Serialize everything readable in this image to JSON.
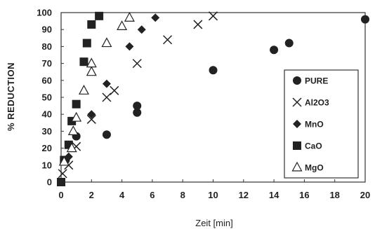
{
  "chart_data": {
    "type": "scatter",
    "xlabel": "Zeit [min]",
    "ylabel": "% REDUCTION",
    "xlim": [
      0,
      20
    ],
    "ylim": [
      0,
      100
    ],
    "x_ticks": [
      0,
      2,
      4,
      6,
      8,
      10,
      12,
      14,
      16,
      18,
      20
    ],
    "y_ticks": [
      0,
      10,
      20,
      30,
      40,
      50,
      60,
      70,
      80,
      90,
      100
    ],
    "grid": false,
    "legend_position": "right",
    "series": [
      {
        "name": "PURE",
        "marker": "circle",
        "points": [
          [
            0,
            0
          ],
          [
            0.3,
            13
          ],
          [
            1,
            27
          ],
          [
            3,
            28
          ],
          [
            5,
            45
          ],
          [
            5,
            41
          ],
          [
            10,
            66
          ],
          [
            14,
            78
          ],
          [
            15,
            82
          ],
          [
            20,
            96
          ]
        ]
      },
      {
        "name": "Al2O3",
        "marker": "x",
        "points": [
          [
            0.1,
            5
          ],
          [
            0.5,
            10
          ],
          [
            1,
            21
          ],
          [
            2,
            37
          ],
          [
            3,
            50
          ],
          [
            3.5,
            54
          ],
          [
            5,
            70
          ],
          [
            7,
            84
          ],
          [
            9,
            93
          ],
          [
            10,
            98
          ]
        ]
      },
      {
        "name": "MnO",
        "marker": "diamond",
        "points": [
          [
            0,
            0
          ],
          [
            0.5,
            15
          ],
          [
            1,
            27
          ],
          [
            2,
            40
          ],
          [
            3,
            58
          ],
          [
            4.5,
            80
          ],
          [
            5.3,
            90
          ],
          [
            6.2,
            97
          ]
        ]
      },
      {
        "name": "CaO",
        "marker": "square",
        "points": [
          [
            0,
            0
          ],
          [
            0.2,
            13
          ],
          [
            0.5,
            22
          ],
          [
            0.7,
            36
          ],
          [
            1,
            46
          ],
          [
            1.5,
            71
          ],
          [
            1.7,
            82
          ],
          [
            2,
            93
          ],
          [
            2.5,
            98
          ]
        ]
      },
      {
        "name": "MgO",
        "marker": "triangle",
        "points": [
          [
            0.2,
            12
          ],
          [
            0.7,
            20
          ],
          [
            0.8,
            30
          ],
          [
            1,
            38
          ],
          [
            1.5,
            54
          ],
          [
            2,
            65
          ],
          [
            2,
            70
          ],
          [
            3,
            82
          ],
          [
            4,
            92
          ],
          [
            4.5,
            97
          ]
        ]
      }
    ]
  }
}
